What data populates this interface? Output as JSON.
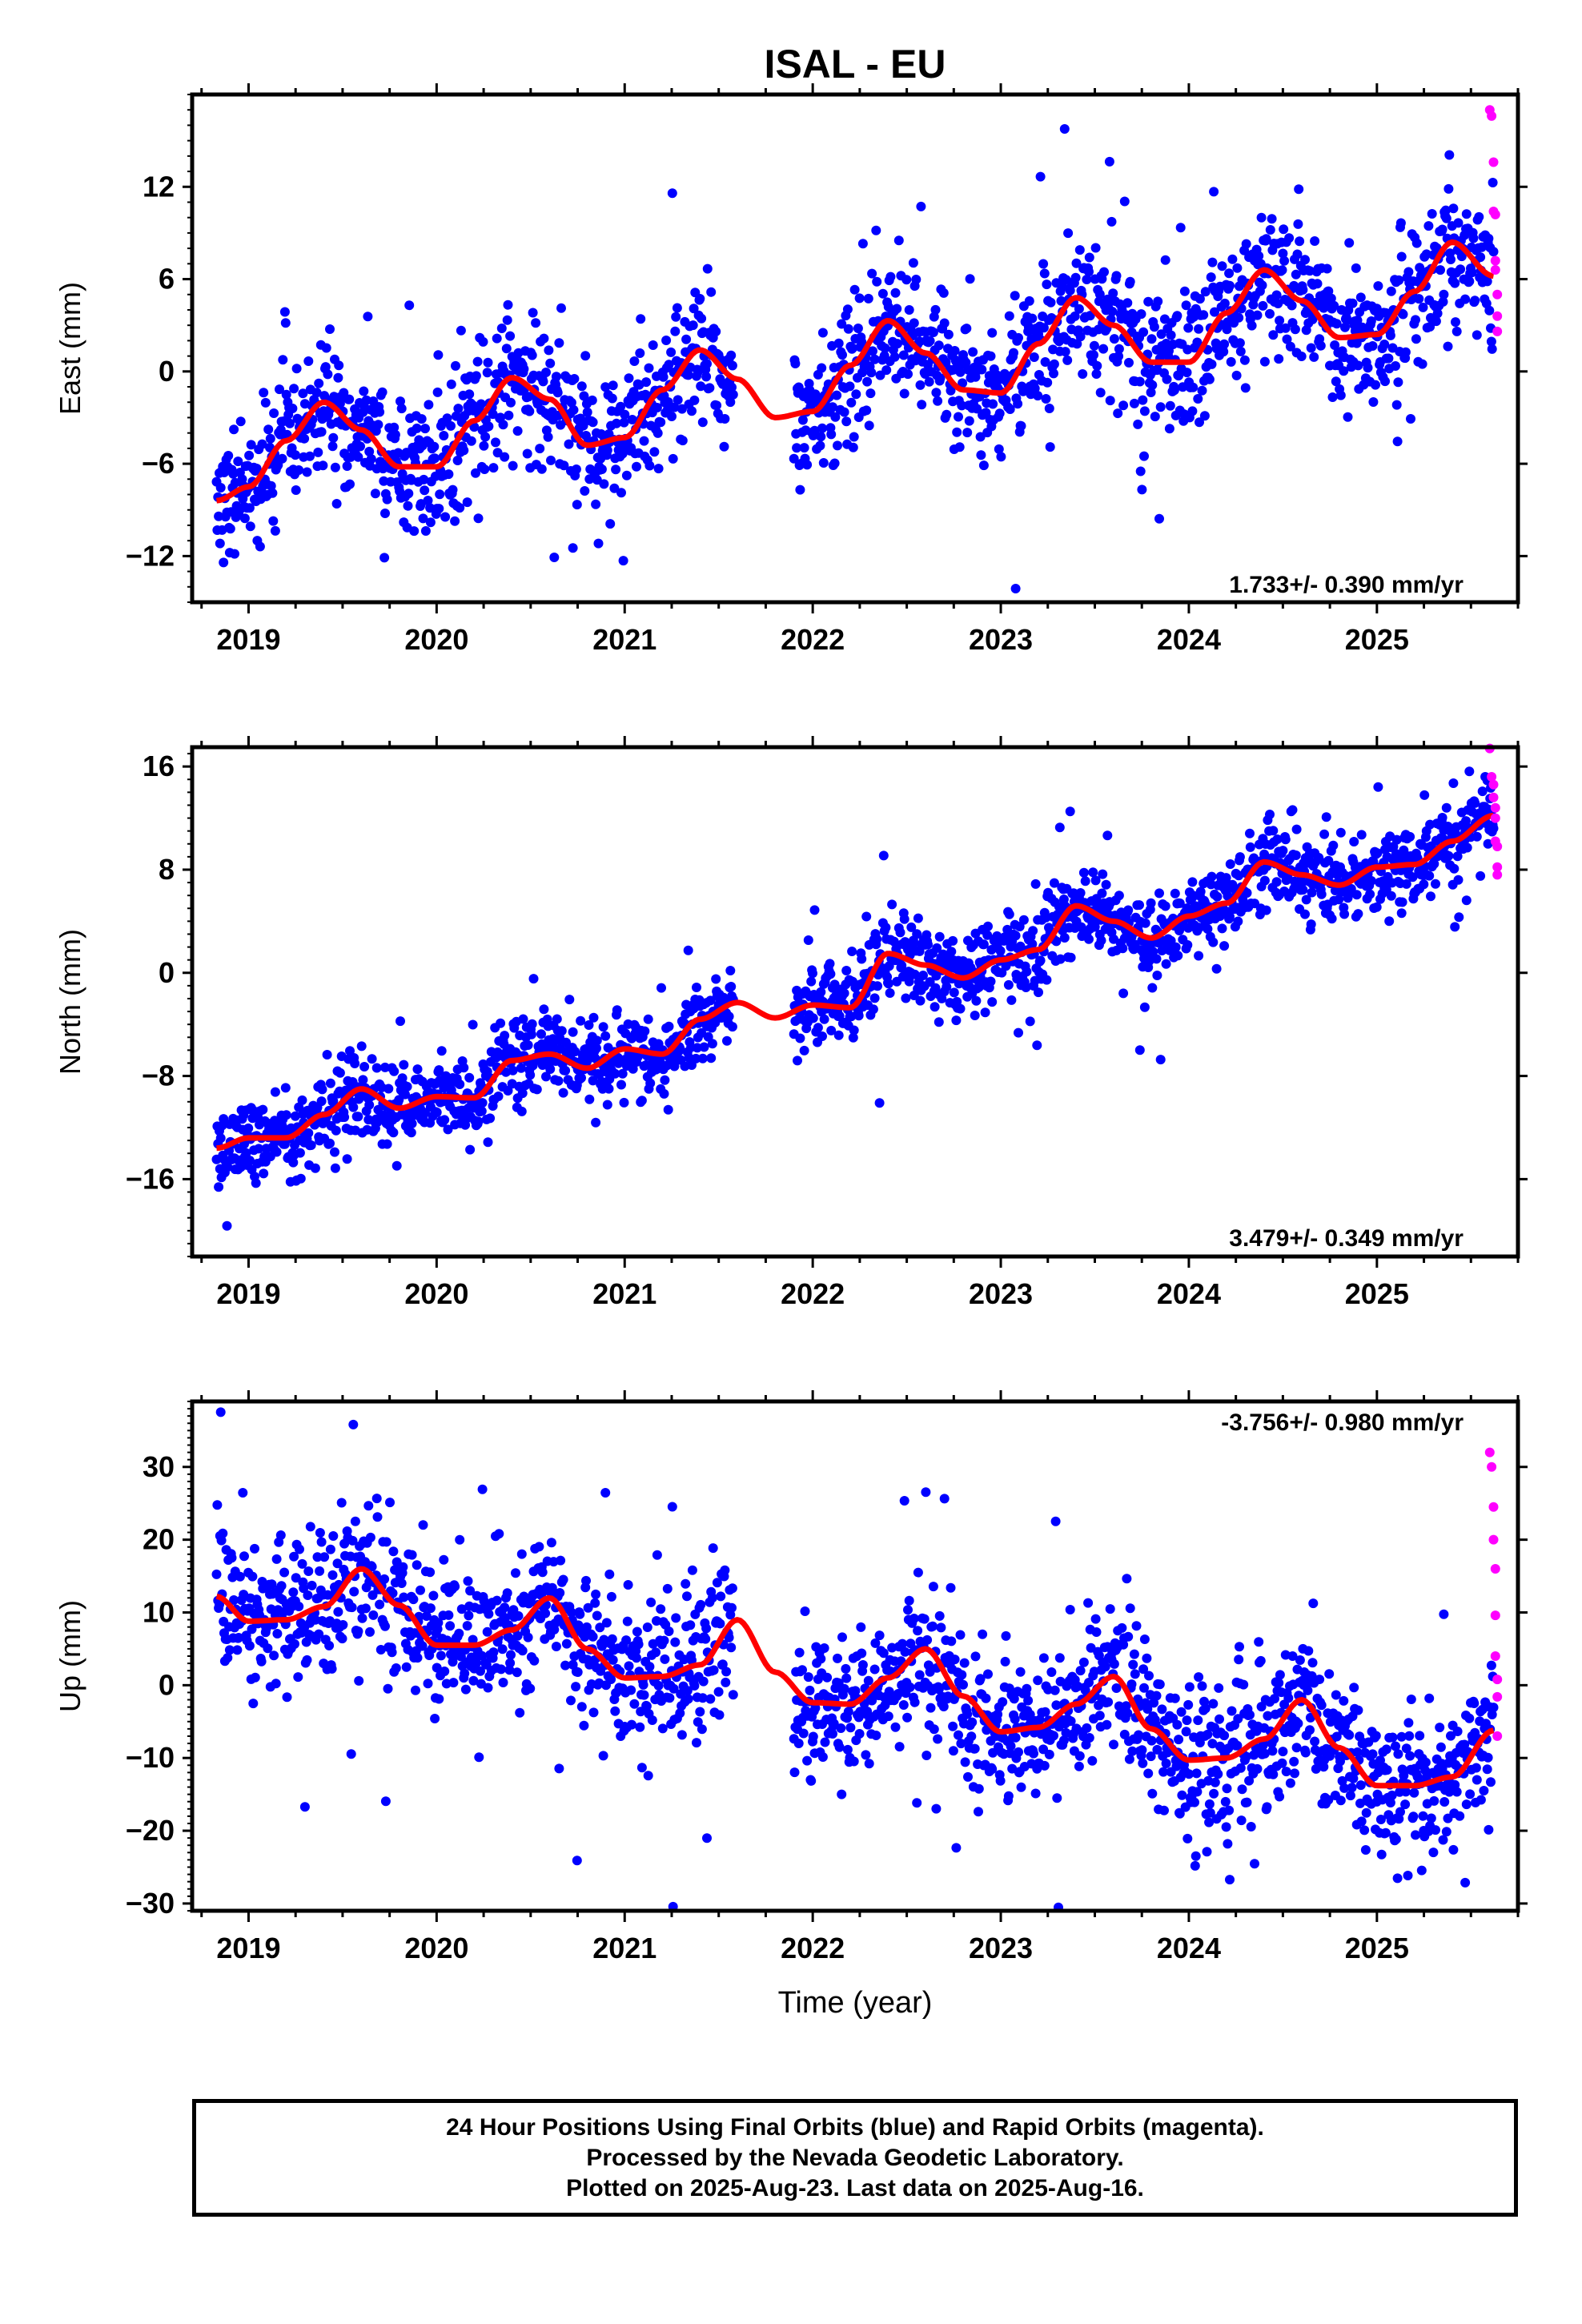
{
  "title": "ISAL - EU",
  "xlabel": "Time (year)",
  "year_ticks": [
    "2019",
    "2020",
    "2021",
    "2022",
    "2023",
    "2024",
    "2025"
  ],
  "colors": {
    "final_orbits": "#0000ff",
    "rapid_orbits": "#ff00ff",
    "model": "#ff0000"
  },
  "panels": [
    {
      "ylabel": "East (mm)",
      "rate": "1.733+/- 0.390 mm/yr",
      "rate_position": "bottom-right",
      "yticks": [
        "12",
        "6",
        "0",
        "−6",
        "−12"
      ]
    },
    {
      "ylabel": "North (mm)",
      "rate": "3.479+/- 0.349 mm/yr",
      "rate_position": "bottom-right",
      "yticks": [
        "16",
        "8",
        "0",
        "−8",
        "−16"
      ]
    },
    {
      "ylabel": "Up (mm)",
      "rate": "-3.756+/- 0.980 mm/yr",
      "rate_position": "top-right",
      "yticks": [
        "30",
        "20",
        "10",
        "0",
        "−10",
        "−20",
        "−30"
      ]
    }
  ],
  "caption": {
    "line1": "24 Hour Positions Using Final Orbits (blue) and Rapid Orbits (magenta).",
    "line2": "Processed by the Nevada Geodetic Laboratory.",
    "line3": "Plotted on 2025-Aug-23. Last data on 2025-Aug-16."
  },
  "chart_data": [
    {
      "type": "scatter",
      "ylabel": "East (mm)",
      "xlim": [
        2018.7,
        2025.75
      ],
      "ylim": [
        -15,
        18
      ],
      "data_range": [
        2018.83,
        2025.62
      ],
      "gap": [
        2021.58,
        2021.9
      ],
      "rate_mm_per_yr": 1.733,
      "rate_uncertainty": 0.39,
      "model_curve": {
        "x": [
          2018.83,
          2019.0,
          2019.2,
          2019.4,
          2019.6,
          2019.8,
          2020.0,
          2020.2,
          2020.4,
          2020.6,
          2020.8,
          2021.0,
          2021.2,
          2021.4,
          2021.6,
          2021.8,
          2022.0,
          2022.2,
          2022.4,
          2022.6,
          2022.8,
          2023.0,
          2023.2,
          2023.4,
          2023.6,
          2023.8,
          2024.0,
          2024.2,
          2024.4,
          2024.6,
          2024.8,
          2025.0,
          2025.2,
          2025.4,
          2025.62
        ],
        "y": [
          -8.4,
          -7.5,
          -4.5,
          -2.0,
          -3.8,
          -6.2,
          -6.2,
          -3.2,
          -0.4,
          -1.8,
          -4.8,
          -4.3,
          -1.2,
          1.4,
          -0.5,
          -3.0,
          -2.6,
          0.4,
          3.3,
          1.2,
          -1.2,
          -1.4,
          1.8,
          4.8,
          3.0,
          0.6,
          0.6,
          3.8,
          6.6,
          4.6,
          2.2,
          2.4,
          5.2,
          8.4,
          6.2
        ]
      },
      "scatter_sd_mm": 2.2,
      "rapid_orbit_points": {
        "x": [
          2025.6,
          2025.61,
          2025.62,
          2025.62,
          2025.63,
          2025.63,
          2025.63,
          2025.64,
          2025.64,
          2025.64
        ],
        "y": [
          17.0,
          16.6,
          13.6,
          10.4,
          10.2,
          7.2,
          6.6,
          5.0,
          3.6,
          2.6
        ]
      }
    },
    {
      "type": "scatter",
      "ylabel": "North (mm)",
      "xlim": [
        2018.7,
        2025.75
      ],
      "ylim": [
        -22,
        17.5
      ],
      "data_range": [
        2018.83,
        2025.62
      ],
      "gap": [
        2021.58,
        2021.9
      ],
      "rate_mm_per_yr": 3.479,
      "rate_uncertainty": 0.349,
      "model_curve": {
        "x": [
          2018.83,
          2019.0,
          2019.2,
          2019.4,
          2019.6,
          2019.8,
          2020.0,
          2020.2,
          2020.4,
          2020.6,
          2020.8,
          2021.0,
          2021.2,
          2021.4,
          2021.6,
          2021.8,
          2022.0,
          2022.2,
          2022.4,
          2022.6,
          2022.8,
          2023.0,
          2023.2,
          2023.4,
          2023.6,
          2023.8,
          2024.0,
          2024.2,
          2024.4,
          2024.6,
          2024.8,
          2025.0,
          2025.2,
          2025.4,
          2025.62
        ],
        "y": [
          -13.6,
          -12.8,
          -12.8,
          -11.0,
          -9.0,
          -10.5,
          -9.6,
          -9.7,
          -6.8,
          -6.3,
          -7.4,
          -5.9,
          -6.3,
          -3.6,
          -2.3,
          -3.5,
          -2.5,
          -2.7,
          1.5,
          0.6,
          -0.4,
          1.0,
          1.8,
          5.2,
          4.0,
          2.7,
          4.4,
          5.4,
          8.6,
          7.6,
          6.8,
          8.2,
          8.4,
          10.2,
          12.2
        ]
      },
      "scatter_sd_mm": 1.6,
      "rapid_orbit_points": {
        "x": [
          2025.6,
          2025.61,
          2025.62,
          2025.62,
          2025.63,
          2025.63,
          2025.63,
          2025.64,
          2025.64,
          2025.64
        ],
        "y": [
          17.4,
          15.2,
          14.6,
          13.6,
          12.8,
          12.0,
          10.2,
          9.8,
          8.2,
          7.6
        ]
      }
    },
    {
      "type": "scatter",
      "ylabel": "Up (mm)",
      "xlim": [
        2018.7,
        2025.75
      ],
      "ylim": [
        -31,
        39
      ],
      "data_range": [
        2018.83,
        2025.62
      ],
      "gap": [
        2021.58,
        2021.9
      ],
      "rate_mm_per_yr": -3.756,
      "rate_uncertainty": 0.98,
      "model_curve": {
        "x": [
          2018.83,
          2019.0,
          2019.2,
          2019.4,
          2019.6,
          2019.8,
          2020.0,
          2020.2,
          2020.4,
          2020.6,
          2020.8,
          2021.0,
          2021.2,
          2021.4,
          2021.6,
          2021.8,
          2022.0,
          2022.2,
          2022.4,
          2022.6,
          2022.8,
          2023.0,
          2023.2,
          2023.4,
          2023.6,
          2023.8,
          2024.0,
          2024.2,
          2024.4,
          2024.6,
          2024.8,
          2025.0,
          2025.2,
          2025.4,
          2025.62
        ],
        "y": [
          12.2,
          8.8,
          9.0,
          10.8,
          16.0,
          11.0,
          5.5,
          5.5,
          7.6,
          12.0,
          5.0,
          1.0,
          1.2,
          2.8,
          9.0,
          1.8,
          -2.4,
          -2.6,
          1.0,
          5.0,
          -1.5,
          -6.4,
          -5.8,
          -2.6,
          1.2,
          -6.0,
          -10.3,
          -10.0,
          -7.4,
          -2.0,
          -8.6,
          -13.8,
          -13.8,
          -12.6,
          -6.2
        ]
      },
      "scatter_sd_mm": 5.2,
      "rapid_orbit_points": {
        "x": [
          2025.6,
          2025.61,
          2025.62,
          2025.62,
          2025.63,
          2025.63,
          2025.63,
          2025.64,
          2025.64,
          2025.64
        ],
        "y": [
          32.0,
          30.0,
          24.5,
          20.0,
          16.0,
          9.6,
          4.0,
          0.8,
          -1.6,
          -7.0
        ]
      }
    }
  ]
}
